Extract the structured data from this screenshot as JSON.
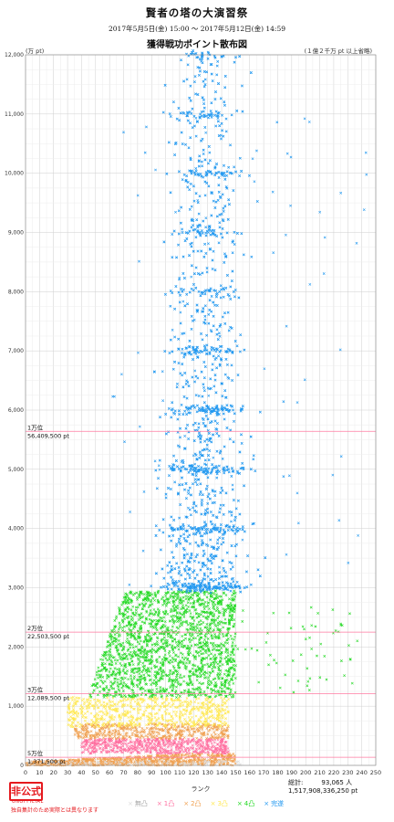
{
  "chart_data": {
    "type": "scatter",
    "title": "賢者の塔の大演習祭",
    "period": "2017年5月5日(金) 15:00 〜 2017年5月12日(金) 14:59",
    "subtitle": "獲得戦功ポイント散布図",
    "xlabel": "ランク",
    "ylabel": "(万 pt)",
    "note": "(１億２千万 pt 以上省略)",
    "xlim": [
      0,
      250
    ],
    "ylim": [
      0,
      12000
    ],
    "x_ticks": [
      "0",
      "10",
      "20",
      "30",
      "40",
      "50",
      "60",
      "70",
      "80",
      "90",
      "100",
      "110",
      "120",
      "130",
      "140",
      "150",
      "160",
      "170",
      "180",
      "190",
      "200",
      "210",
      "220",
      "230",
      "240",
      "250"
    ],
    "y_ticks": [
      "0",
      "1,000",
      "2,000",
      "3,000",
      "4,000",
      "5,000",
      "6,000",
      "7,000",
      "8,000",
      "9,000",
      "10,000",
      "11,000",
      "12,000"
    ],
    "grid": true,
    "rank_lines": [
      {
        "label": "1万位",
        "value_label": "56,409,500 pt",
        "y": 5640.95
      },
      {
        "label": "2万位",
        "value_label": "22,503,500 pt",
        "y": 2250.35
      },
      {
        "label": "3万位",
        "value_label": "12,089,500 pt",
        "y": 1208.95
      },
      {
        "label": "5万位",
        "value_label": "1,371,500 pt",
        "y": 137.15
      }
    ],
    "series": [
      {
        "name": "無凸",
        "color": "#dddddd"
      },
      {
        "name": "1凸",
        "color": "#ff6fa0"
      },
      {
        "name": "2凸",
        "color": "#f0a050"
      },
      {
        "name": "3凸",
        "color": "#ffe850"
      },
      {
        "name": "4凸",
        "color": "#22d922"
      },
      {
        "name": "完遂",
        "color": "#2399f0"
      }
    ],
    "legend_position": "bottom"
  },
  "stamp": {
    "main": "非公式",
    "sub": "UNOFFICIAL",
    "note": "独自集計のため実際とは異なります"
  },
  "totals": {
    "label": "総計:",
    "count": "93,065 人",
    "points": "1,517,908,336,250 pt"
  }
}
